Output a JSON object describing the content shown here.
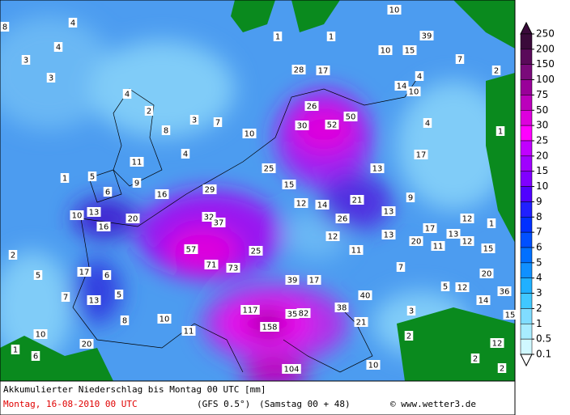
{
  "map": {
    "labels": [
      "8",
      "4",
      "4",
      "3",
      "3",
      "4",
      "2",
      "3",
      "7",
      "8",
      "10",
      "4",
      "11",
      "5",
      "1",
      "6",
      "9",
      "16",
      "29",
      "25",
      "15",
      "12",
      "14",
      "21",
      "13",
      "9",
      "10",
      "13",
      "16",
      "20",
      "32",
      "37",
      "26",
      "13",
      "12",
      "13",
      "17",
      "20",
      "11",
      "13",
      "12",
      "12",
      "15",
      "1",
      "11",
      "57",
      "25",
      "71",
      "73",
      "17",
      "6",
      "5",
      "7",
      "13",
      "5",
      "7",
      "39",
      "17",
      "40",
      "20",
      "36",
      "5",
      "12",
      "14",
      "15",
      "117",
      "35",
      "82",
      "38",
      "3",
      "21",
      "8",
      "10",
      "11",
      "158",
      "10",
      "20",
      "1",
      "6",
      "2",
      "12",
      "2",
      "104",
      "10",
      "2",
      "28",
      "17",
      "26",
      "30",
      "52",
      "50",
      "1",
      "1",
      "10",
      "39",
      "15",
      "10",
      "14",
      "10",
      "7",
      "4",
      "4",
      "17",
      "1",
      "2",
      "2"
    ]
  },
  "legend": {
    "levels": [
      250,
      200,
      150,
      100,
      75,
      50,
      30,
      25,
      20,
      15,
      10,
      9,
      8,
      7,
      6,
      5,
      4,
      3,
      2,
      1,
      0.5,
      0.1
    ],
    "colors": [
      "#3a0a3a",
      "#5a0a5a",
      "#7a0a7a",
      "#990099",
      "#bb00bb",
      "#dd00dd",
      "#ff00ff",
      "#c000ff",
      "#a000ff",
      "#8000ff",
      "#5000ff",
      "#2020ff",
      "#0030ff",
      "#0050ff",
      "#0070ff",
      "#1090ff",
      "#20b0ff",
      "#40c8ff",
      "#80dcff",
      "#a8ecff",
      "#d0f8ff"
    ]
  },
  "footer": {
    "title": "Akkumulierter Niederschlag bis Montag 00 UTC [mm]",
    "date": "Montag, 16-08-2010  00 UTC",
    "model": "(GFS 0.5°)",
    "run": "(Samstag 00 + 48)",
    "credit": "© www.wetter3.de"
  }
}
